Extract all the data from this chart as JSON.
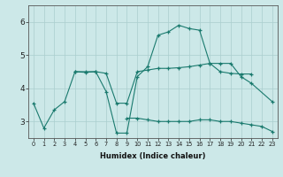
{
  "title": "",
  "xlabel": "Humidex (Indice chaleur)",
  "background_color": "#cce8e8",
  "line_color": "#1a7a6e",
  "xlim": [
    -0.5,
    23.5
  ],
  "ylim": [
    2.5,
    6.5
  ],
  "yticks": [
    3,
    4,
    5,
    6
  ],
  "xticks": [
    0,
    1,
    2,
    3,
    4,
    5,
    6,
    7,
    8,
    9,
    10,
    11,
    12,
    13,
    14,
    15,
    16,
    17,
    18,
    19,
    20,
    21,
    22,
    23
  ],
  "lines": [
    {
      "x": [
        0,
        1,
        2,
        3,
        4,
        5,
        6,
        7,
        8,
        9,
        10,
        11,
        12,
        13,
        14,
        15,
        16,
        17,
        18,
        19,
        20,
        21,
        23
      ],
      "y": [
        3.55,
        2.8,
        3.35,
        3.6,
        4.5,
        4.48,
        4.5,
        3.9,
        2.65,
        2.65,
        4.35,
        4.65,
        5.6,
        5.7,
        5.9,
        5.8,
        5.75,
        4.75,
        4.75,
        4.75,
        4.35,
        4.15,
        3.6
      ]
    },
    {
      "x": [
        4,
        5,
        6,
        7,
        8,
        9,
        10,
        11,
        12,
        13,
        14,
        15,
        16,
        17,
        18,
        19,
        20,
        21
      ],
      "y": [
        4.5,
        4.5,
        4.5,
        4.45,
        3.55,
        3.55,
        4.5,
        4.55,
        4.6,
        4.6,
        4.62,
        4.65,
        4.7,
        4.75,
        4.5,
        4.45,
        4.43,
        4.43
      ]
    },
    {
      "x": [
        9,
        10,
        11,
        12,
        13,
        14,
        15,
        16,
        17,
        18,
        19,
        20,
        21,
        22,
        23
      ],
      "y": [
        3.1,
        3.1,
        3.05,
        3.0,
        3.0,
        3.0,
        3.0,
        3.05,
        3.05,
        3.0,
        3.0,
        2.95,
        2.9,
        2.85,
        2.7
      ]
    }
  ]
}
